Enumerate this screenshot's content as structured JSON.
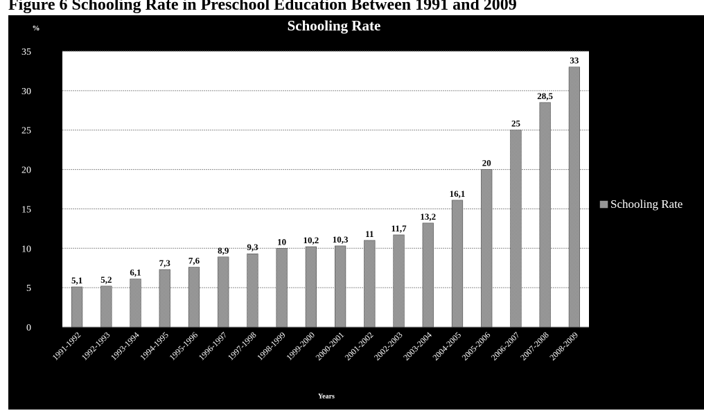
{
  "figure_caption": "Figure 6 Schooling Rate in Preschool Education Between 1991 and 2009",
  "chart_data": {
    "type": "bar",
    "title": "Schooling Rate",
    "ylabel": "%",
    "xlabel": "Years",
    "ylim": [
      0,
      35
    ],
    "yticks": [
      0,
      5,
      10,
      15,
      20,
      25,
      30,
      35
    ],
    "grid": true,
    "legend": "right",
    "categories": [
      "1991-1992",
      "1992-1993",
      "1993-1994",
      "1994-1995",
      "1995-1996",
      "1996-1997",
      "1997-1998",
      "1998-1999",
      "1999-2000",
      "2000-2001",
      "2001-2002",
      "2002-2003",
      "2003-2004",
      "2004-2005",
      "2005-2006",
      "2006-2007",
      "2007-2008",
      "2008-2009"
    ],
    "series": [
      {
        "name": "Schooling Rate",
        "values": [
          5.1,
          5.2,
          6.1,
          7.3,
          7.6,
          8.9,
          9.3,
          10,
          10.2,
          10.3,
          11,
          11.7,
          13.2,
          16.1,
          20,
          25,
          28.5,
          33
        ],
        "labels": [
          "5,1",
          "5,2",
          "6,1",
          "7,3",
          "7,6",
          "8,9",
          "9,3",
          "10",
          "10,2",
          "10,3",
          "11",
          "11,7",
          "13,2",
          "16,1",
          "20",
          "25",
          "28,5",
          "33"
        ],
        "color": "#8a8a8a"
      }
    ]
  }
}
